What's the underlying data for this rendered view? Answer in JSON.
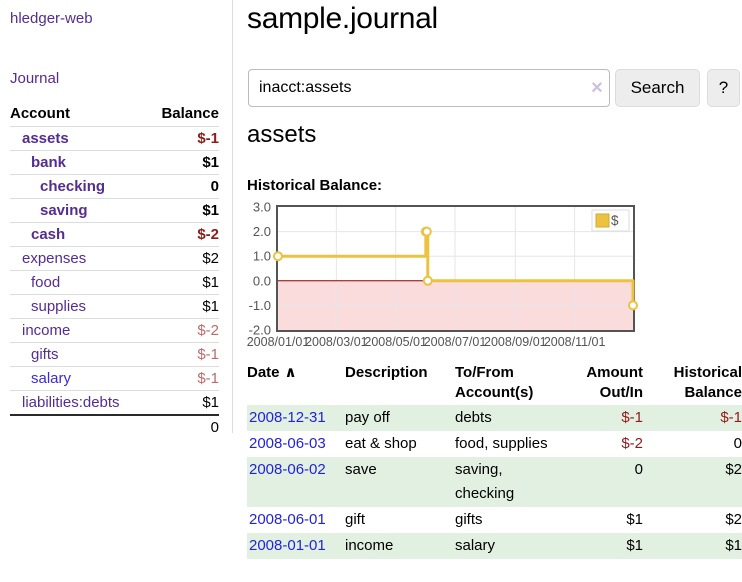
{
  "colors": {
    "link_purple": "#552d90",
    "link_blue_account": "#3b2bd9",
    "link_blue_date": "#2222dd",
    "negative_dark": "#911a1a",
    "negative_light": "#bf6a6a",
    "row_green": "#e2f0e2",
    "chart_line": "#edc240",
    "chart_negative_fill": "#fbdcdc",
    "chart_zero_line": "#8b0000",
    "chart_grid": "#e6e6e6",
    "chart_border": "#545454",
    "chart_text": "#545454"
  },
  "sidebar": {
    "brand": "hledger-web",
    "nav_journal": "Journal",
    "accounts": {
      "col_account": "Account",
      "col_balance": "Balance",
      "rows": [
        {
          "name": "assets",
          "indent": 1,
          "balance": "$-1",
          "bold": true,
          "balance_tone": "dark-red"
        },
        {
          "name": "bank",
          "indent": 2,
          "balance": "$1",
          "bold": true,
          "balance_tone": "black"
        },
        {
          "name": "checking",
          "indent": 3,
          "balance": "0",
          "bold": true,
          "balance_tone": "black"
        },
        {
          "name": "saving",
          "indent": 3,
          "balance": "$1",
          "bold": true,
          "balance_tone": "black"
        },
        {
          "name": "cash",
          "indent": 2,
          "balance": "$-2",
          "bold": true,
          "balance_tone": "dark-red"
        },
        {
          "name": "expenses",
          "indent": 1,
          "balance": "$2",
          "bold": false,
          "balance_tone": "black"
        },
        {
          "name": "food",
          "indent": 2,
          "balance": "$1",
          "bold": false,
          "balance_tone": "black"
        },
        {
          "name": "supplies",
          "indent": 2,
          "balance": "$1",
          "bold": false,
          "balance_tone": "black"
        },
        {
          "name": "income",
          "indent": 1,
          "balance": "$-2",
          "bold": false,
          "balance_tone": "light-red"
        },
        {
          "name": "gifts",
          "indent": 2,
          "balance": "$-1",
          "bold": false,
          "balance_tone": "light-red"
        },
        {
          "name": "salary",
          "indent": 2,
          "balance": "$-1",
          "bold": false,
          "balance_tone": "light-red",
          "link_tone": "blue"
        },
        {
          "name": "liabilities:debts",
          "indent": 1,
          "balance": "$1",
          "bold": false,
          "balance_tone": "black"
        }
      ],
      "total": "0"
    }
  },
  "header": {
    "title": "sample.journal"
  },
  "search": {
    "value": "inacct:assets",
    "clear_icon": "×",
    "search_button": "Search",
    "help_button": "?"
  },
  "main": {
    "account_heading": "assets",
    "chart_title": "Historical Balance:"
  },
  "chart_data": {
    "type": "line",
    "step": true,
    "title": "Historical Balance",
    "series": [
      {
        "name": "$",
        "color": "#edc240",
        "points": [
          [
            "2008-01-01",
            1
          ],
          [
            "2008-06-01",
            2
          ],
          [
            "2008-06-02",
            2
          ],
          [
            "2008-06-03",
            0
          ],
          [
            "2008-12-31",
            -1
          ]
        ]
      }
    ],
    "x_range": [
      "2008-01-01",
      "2008-12-31"
    ],
    "xticks": [
      "2008/01/01",
      "2008/03/01",
      "2008/05/01",
      "2008/07/01",
      "2008/09/01",
      "2008/11/01"
    ],
    "yticks": [
      "3.0",
      "2.0",
      "1.0",
      "0.0",
      "-1.0",
      "-2.0"
    ],
    "ylim": [
      -2,
      3
    ],
    "legend": "$",
    "legend_position": "top-right",
    "grid": true,
    "negative_region_shaded": true
  },
  "register": {
    "columns": [
      {
        "line1": "Date",
        "line2": "",
        "align": "left",
        "sort_indicator": "∧"
      },
      {
        "line1": "Description",
        "line2": "",
        "align": "left"
      },
      {
        "line1": "To/From",
        "line2": "Account(s)",
        "align": "left"
      },
      {
        "line1": "Amount",
        "line2": "Out/In",
        "align": "right"
      },
      {
        "line1": "Historical",
        "line2": "Balance",
        "align": "right"
      }
    ],
    "rows": [
      {
        "date": "2008-12-31",
        "description": "pay off",
        "accounts": "debts",
        "amount": "$-1",
        "amount_tone": "dark-red",
        "balance": "$-1",
        "balance_tone": "dark-red",
        "shaded": true
      },
      {
        "date": "2008-06-03",
        "description": "eat & shop",
        "accounts": "food, supplies",
        "amount": "$-2",
        "amount_tone": "dark-red",
        "balance": "0",
        "balance_tone": "black",
        "shaded": false
      },
      {
        "date": "2008-06-02",
        "description": "save",
        "accounts": "saving, checking",
        "amount": "0",
        "amount_tone": "black",
        "balance": "$2",
        "balance_tone": "black",
        "shaded": true
      },
      {
        "date": "2008-06-01",
        "description": "gift",
        "accounts": "gifts",
        "amount": "$1",
        "amount_tone": "black",
        "balance": "$2",
        "balance_tone": "black",
        "shaded": false
      },
      {
        "date": "2008-01-01",
        "description": "income",
        "accounts": "salary",
        "amount": "$1",
        "amount_tone": "black",
        "balance": "$1",
        "balance_tone": "black",
        "shaded": true
      }
    ]
  }
}
